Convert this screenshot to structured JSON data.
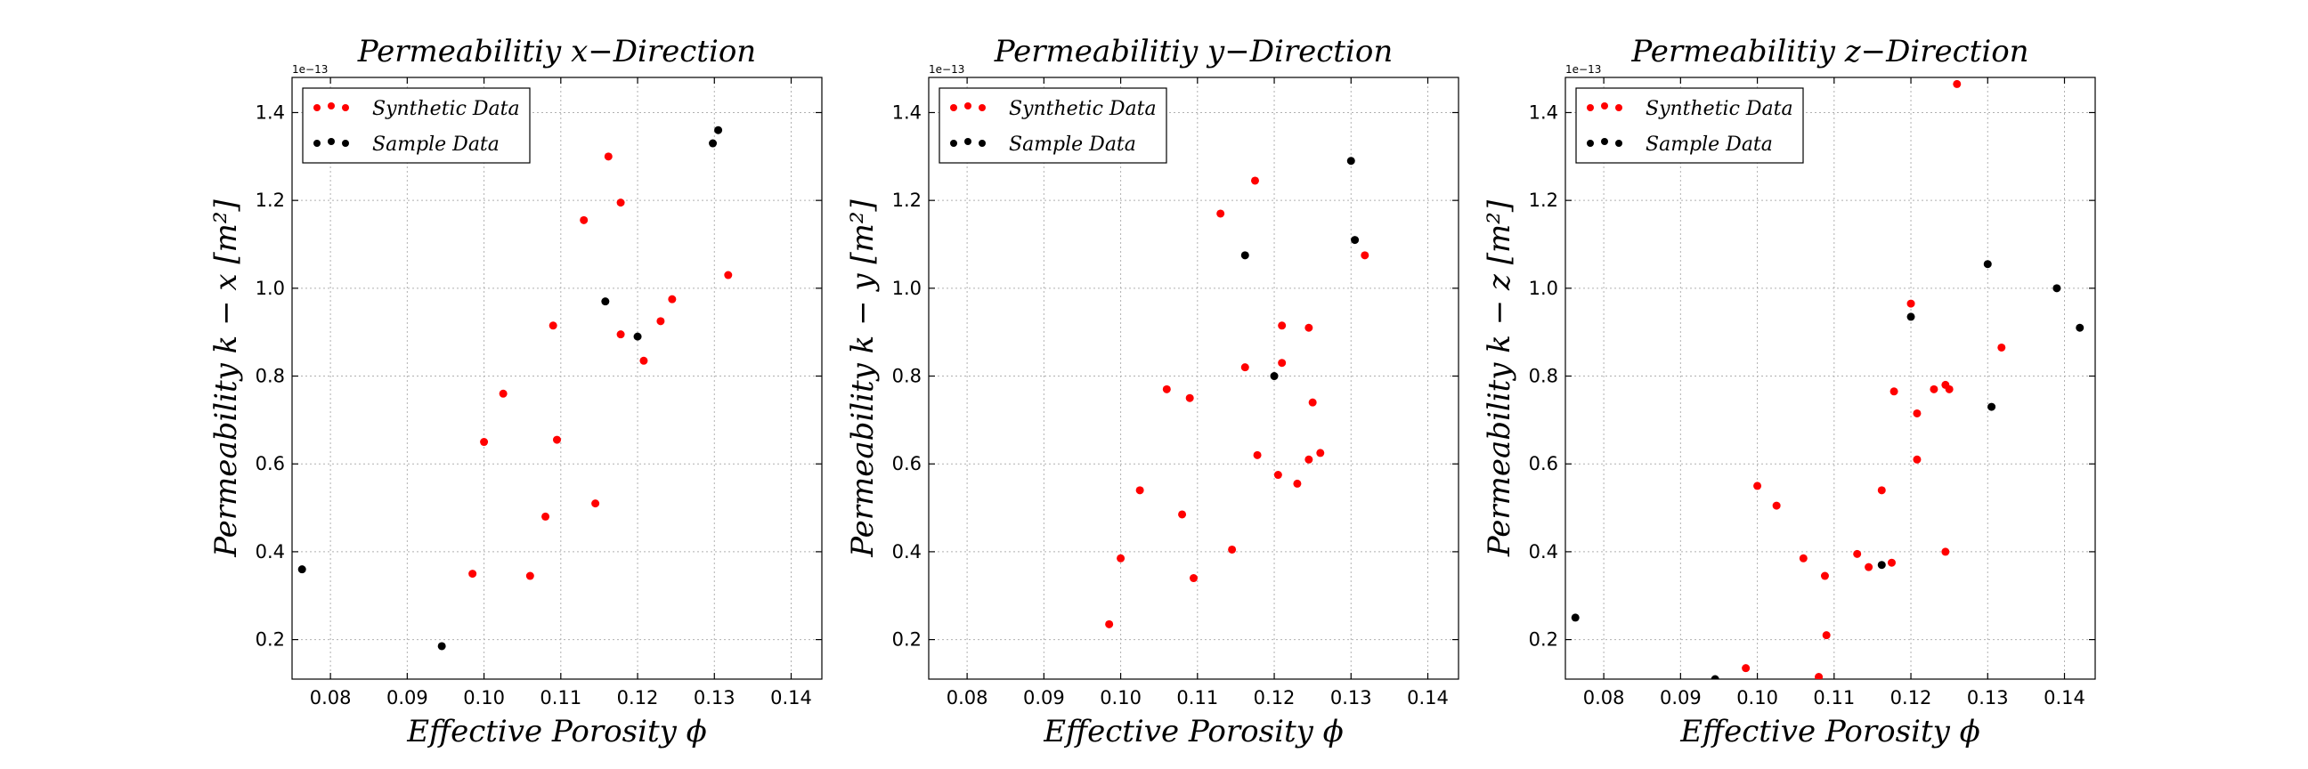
{
  "colors": {
    "synthetic": "#ff0000",
    "sample": "#000000"
  },
  "chart_data": [
    {
      "type": "scatter",
      "title": "Permeabilitiy x−Direction",
      "xlabel": "Effective Porosity ϕ",
      "ylabel": "Permeability k − x [m²]",
      "y_offset_text": "1e−13",
      "xlim": [
        0.075,
        0.144
      ],
      "ylim": [
        0.11,
        1.48
      ],
      "xticks": [
        "0.08",
        "0.09",
        "0.10",
        "0.11",
        "0.12",
        "0.13",
        "0.14"
      ],
      "yticks": [
        "0.2",
        "0.4",
        "0.6",
        "0.8",
        "1.0",
        "1.2",
        "1.4"
      ],
      "grid": true,
      "legend": {
        "placement": "top-left",
        "entries": [
          "Synthetic Data",
          "Sample Data"
        ]
      },
      "series": [
        {
          "name": "Synthetic Data",
          "color": "#ff0000",
          "points": [
            [
              0.0985,
              0.35
            ],
            [
              0.1,
              0.65
            ],
            [
              0.1025,
              0.76
            ],
            [
              0.106,
              0.345
            ],
            [
              0.108,
              0.48
            ],
            [
              0.109,
              0.915
            ],
            [
              0.1095,
              0.655
            ],
            [
              0.113,
              1.155
            ],
            [
              0.1145,
              0.51
            ],
            [
              0.1162,
              1.3
            ],
            [
              0.1178,
              1.195
            ],
            [
              0.1178,
              0.895
            ],
            [
              0.1208,
              0.835
            ],
            [
              0.123,
              0.925
            ],
            [
              0.1245,
              0.975
            ],
            [
              0.1318,
              1.03
            ]
          ]
        },
        {
          "name": "Sample Data",
          "color": "#000000",
          "points": [
            [
              0.0763,
              0.36
            ],
            [
              0.0945,
              0.185
            ],
            [
              0.1158,
              0.97
            ],
            [
              0.12,
              0.89
            ],
            [
              0.1298,
              1.33
            ],
            [
              0.1305,
              1.36
            ]
          ]
        }
      ]
    },
    {
      "type": "scatter",
      "title": "Permeabilitiy y−Direction",
      "xlabel": "Effective Porosity ϕ",
      "ylabel": "Permeability k − y [m²]",
      "y_offset_text": "1e−13",
      "xlim": [
        0.075,
        0.144
      ],
      "ylim": [
        0.11,
        1.48
      ],
      "xticks": [
        "0.08",
        "0.09",
        "0.10",
        "0.11",
        "0.12",
        "0.13",
        "0.14"
      ],
      "yticks": [
        "0.2",
        "0.4",
        "0.6",
        "0.8",
        "1.0",
        "1.2",
        "1.4"
      ],
      "grid": true,
      "legend": {
        "placement": "top-left",
        "entries": [
          "Synthetic Data",
          "Sample Data"
        ]
      },
      "series": [
        {
          "name": "Synthetic Data",
          "color": "#ff0000",
          "points": [
            [
              0.0985,
              0.235
            ],
            [
              0.1,
              0.385
            ],
            [
              0.1025,
              0.54
            ],
            [
              0.106,
              0.77
            ],
            [
              0.108,
              0.485
            ],
            [
              0.109,
              0.75
            ],
            [
              0.1095,
              0.34
            ],
            [
              0.113,
              1.17
            ],
            [
              0.1145,
              0.405
            ],
            [
              0.1162,
              0.82
            ],
            [
              0.1175,
              1.245
            ],
            [
              0.1178,
              0.62
            ],
            [
              0.1205,
              0.575
            ],
            [
              0.121,
              0.915
            ],
            [
              0.121,
              0.83
            ],
            [
              0.123,
              0.555
            ],
            [
              0.1245,
              0.91
            ],
            [
              0.1245,
              0.61
            ],
            [
              0.125,
              0.74
            ],
            [
              0.126,
              0.625
            ],
            [
              0.1318,
              1.075
            ]
          ]
        },
        {
          "name": "Sample Data",
          "color": "#000000",
          "points": [
            [
              0.1162,
              1.075
            ],
            [
              0.12,
              0.8
            ],
            [
              0.13,
              1.29
            ],
            [
              0.1305,
              1.11
            ]
          ]
        }
      ]
    },
    {
      "type": "scatter",
      "title": "Permeabilitiy z−Direction",
      "xlabel": "Effective Porosity ϕ",
      "ylabel": "Permeability k − z [m²]",
      "y_offset_text": "1e−13",
      "xlim": [
        0.075,
        0.144
      ],
      "ylim": [
        0.11,
        1.48
      ],
      "xticks": [
        "0.08",
        "0.09",
        "0.10",
        "0.11",
        "0.12",
        "0.13",
        "0.14"
      ],
      "yticks": [
        "0.2",
        "0.4",
        "0.6",
        "0.8",
        "1.0",
        "1.2",
        "1.4"
      ],
      "grid": true,
      "legend": {
        "placement": "top-left",
        "entries": [
          "Synthetic Data",
          "Sample Data"
        ]
      },
      "series": [
        {
          "name": "Synthetic Data",
          "color": "#ff0000",
          "points": [
            [
              0.0985,
              0.135
            ],
            [
              0.1,
              0.55
            ],
            [
              0.1025,
              0.505
            ],
            [
              0.106,
              0.385
            ],
            [
              0.108,
              0.115
            ],
            [
              0.1088,
              0.345
            ],
            [
              0.109,
              0.21
            ],
            [
              0.113,
              0.395
            ],
            [
              0.1145,
              0.365
            ],
            [
              0.1162,
              0.54
            ],
            [
              0.1175,
              0.375
            ],
            [
              0.1178,
              0.765
            ],
            [
              0.12,
              0.965
            ],
            [
              0.1208,
              0.715
            ],
            [
              0.1208,
              0.61
            ],
            [
              0.123,
              0.77
            ],
            [
              0.1245,
              0.78
            ],
            [
              0.1245,
              0.4
            ],
            [
              0.125,
              0.77
            ],
            [
              0.126,
              1.465
            ],
            [
              0.1318,
              0.865
            ]
          ]
        },
        {
          "name": "Sample Data",
          "color": "#000000",
          "points": [
            [
              0.0763,
              0.25
            ],
            [
              0.0945,
              0.11
            ],
            [
              0.1162,
              0.37
            ],
            [
              0.12,
              0.935
            ],
            [
              0.13,
              1.055
            ],
            [
              0.1305,
              0.73
            ],
            [
              0.139,
              1.0
            ],
            [
              0.142,
              0.91
            ]
          ]
        }
      ]
    }
  ]
}
